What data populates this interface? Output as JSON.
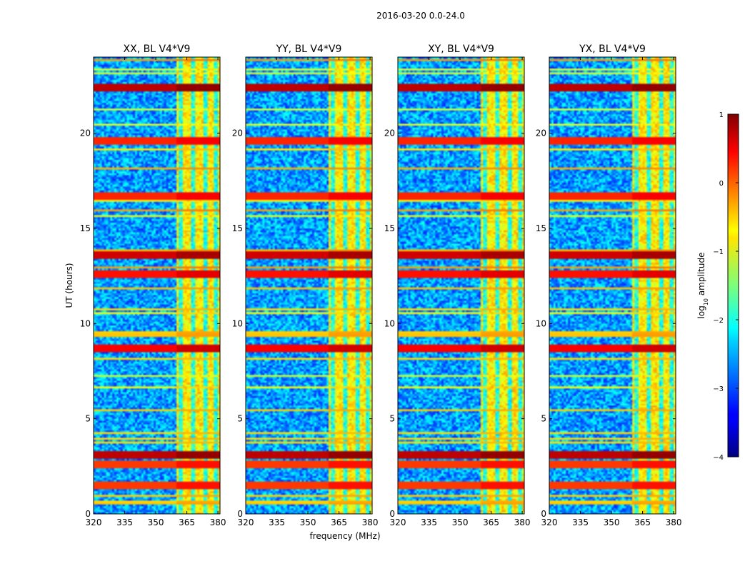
{
  "suptitle": "2016-03-20 0.0-24.0",
  "chart_data": {
    "type": "heatmap",
    "suptitle": "2016-03-20 0.0-24.0",
    "xlabel": "frequency (MHz)",
    "ylabel": "UT (hours)",
    "xlim": [
      320,
      381
    ],
    "ylim": [
      0,
      24
    ],
    "xticks": [
      320,
      335,
      350,
      365,
      380
    ],
    "xtick_labels": [
      "320",
      "335",
      "350",
      "365",
      "380"
    ],
    "yticks": [
      0,
      5,
      10,
      15,
      20
    ],
    "ytick_labels": [
      "0",
      "5",
      "10",
      "15",
      "20"
    ],
    "colormap": "jet",
    "colorbar": {
      "label_prefix": "log",
      "label_sub": "10",
      "label_suffix": " amplitude",
      "range": [
        -4,
        1
      ],
      "ticks": [
        1,
        0,
        -1,
        -2,
        -3,
        -4
      ],
      "tick_labels": [
        "1",
        "0",
        "−1",
        "−2",
        "−3",
        "−4"
      ]
    },
    "panels": [
      {
        "title": "XX, BL V4*V9",
        "polarization": "XX"
      },
      {
        "title": "YY, BL V4*V9",
        "polarization": "YY"
      },
      {
        "title": "XY, BL V4*V9",
        "polarization": "XY"
      },
      {
        "title": "YX, BL V4*V9",
        "polarization": "YX"
      }
    ],
    "features": {
      "rfi_band_mhz": [
        360,
        381
      ],
      "rfi_band_level": -0.8,
      "strong_channels_mhz": [
        362,
        368,
        374,
        379
      ],
      "background_level": -2.6,
      "strong_events_ut": [
        {
          "ut": 22.4,
          "level": 0.7
        },
        {
          "ut": 13.6,
          "level": 0.6
        },
        {
          "ut": 3.1,
          "level": 0.7
        },
        {
          "ut": 8.7,
          "level": 0.4
        },
        {
          "ut": 12.6,
          "level": 0.3
        },
        {
          "ut": 16.7,
          "level": 0.2
        },
        {
          "ut": 19.6,
          "level": 0.2
        },
        {
          "ut": 2.6,
          "level": 0.1
        },
        {
          "ut": 1.5,
          "level": 0.1
        }
      ]
    }
  }
}
